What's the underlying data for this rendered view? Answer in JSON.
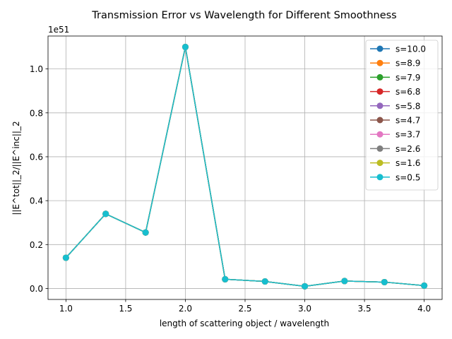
{
  "chart_data": {
    "type": "line",
    "title": "Transmission Error vs Wavelength for Different Smoothness",
    "xlabel": "length of scattering object / wavelength",
    "ylabel": "||E^tot||_2/||E^inc||_2",
    "y_offset_label": "1e51",
    "xlim": [
      0.85,
      4.15
    ],
    "ylim": [
      -0.05,
      1.15
    ],
    "xticks": [
      1.0,
      1.5,
      2.0,
      2.5,
      3.0,
      3.5,
      4.0
    ],
    "xtick_labels": [
      "1.0",
      "1.5",
      "2.0",
      "2.5",
      "3.0",
      "3.5",
      "4.0"
    ],
    "yticks": [
      0.0,
      0.2,
      0.4,
      0.6,
      0.8,
      1.0
    ],
    "ytick_labels": [
      "0.0",
      "0.2",
      "0.4",
      "0.6",
      "0.8",
      "1.0"
    ],
    "grid": true,
    "legend_position": "upper-right",
    "x": [
      1.0,
      1.333,
      1.667,
      2.0,
      2.333,
      2.667,
      3.0,
      3.333,
      3.667,
      4.0
    ],
    "series": [
      {
        "name": "s=10.0",
        "color": "#1f77b4",
        "values": [
          0.14,
          0.34,
          0.255,
          1.1,
          0.042,
          0.032,
          0.01,
          0.034,
          0.029,
          0.013
        ]
      },
      {
        "name": "s=8.9",
        "color": "#ff7f0e",
        "values": [
          0.14,
          0.34,
          0.255,
          1.1,
          0.042,
          0.032,
          0.01,
          0.034,
          0.029,
          0.013
        ]
      },
      {
        "name": "s=7.9",
        "color": "#2ca02c",
        "values": [
          0.14,
          0.34,
          0.255,
          1.1,
          0.042,
          0.032,
          0.01,
          0.034,
          0.029,
          0.013
        ]
      },
      {
        "name": "s=6.8",
        "color": "#d62728",
        "values": [
          0.14,
          0.34,
          0.255,
          1.1,
          0.042,
          0.032,
          0.01,
          0.034,
          0.029,
          0.013
        ]
      },
      {
        "name": "s=5.8",
        "color": "#9467bd",
        "values": [
          0.14,
          0.34,
          0.255,
          1.1,
          0.042,
          0.032,
          0.01,
          0.034,
          0.029,
          0.013
        ]
      },
      {
        "name": "s=4.7",
        "color": "#8c564b",
        "values": [
          0.14,
          0.34,
          0.255,
          1.1,
          0.042,
          0.032,
          0.01,
          0.034,
          0.029,
          0.013
        ]
      },
      {
        "name": "s=3.7",
        "color": "#e377c2",
        "values": [
          0.14,
          0.34,
          0.255,
          1.1,
          0.042,
          0.032,
          0.01,
          0.034,
          0.029,
          0.013
        ]
      },
      {
        "name": "s=2.6",
        "color": "#7f7f7f",
        "values": [
          0.14,
          0.34,
          0.255,
          1.1,
          0.042,
          0.032,
          0.01,
          0.034,
          0.029,
          0.013
        ]
      },
      {
        "name": "s=1.6",
        "color": "#bcbd22",
        "values": [
          0.14,
          0.34,
          0.255,
          1.1,
          0.042,
          0.032,
          0.01,
          0.034,
          0.029,
          0.013
        ]
      },
      {
        "name": "s=0.5",
        "color": "#17becf",
        "values": [
          0.14,
          0.34,
          0.255,
          1.1,
          0.042,
          0.032,
          0.01,
          0.034,
          0.029,
          0.013
        ]
      }
    ]
  }
}
